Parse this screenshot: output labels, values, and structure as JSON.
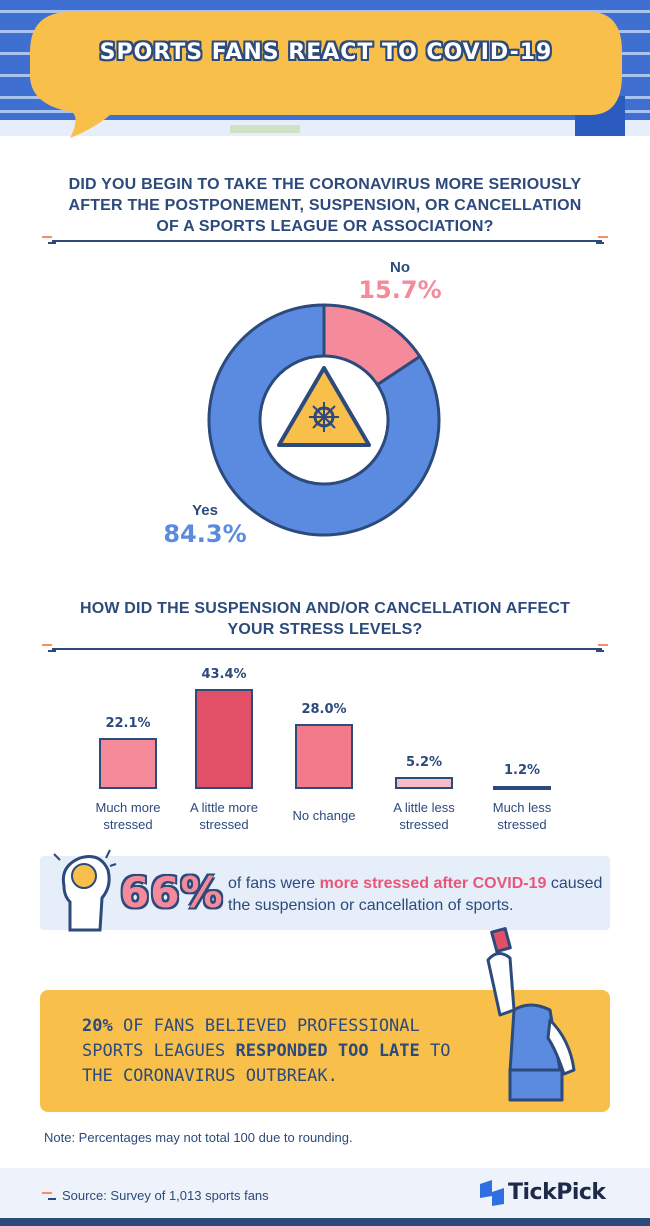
{
  "header": {
    "title": "SPORTS FANS REACT TO COVID-19"
  },
  "chart_data": [
    {
      "type": "donut",
      "title": "DID YOU BEGIN TO TAKE THE CORONAVIRUS MORE SERIOUSLY AFTER THE POSTPONEMENT, SUSPENSION, OR CANCELLATION OF A SPORTS LEAGUE OR ASSOCIATION?",
      "categories": [
        "No",
        "Yes"
      ],
      "values": [
        15.7,
        84.3
      ],
      "value_labels": [
        "15.7%",
        "84.3%"
      ],
      "colors": [
        "#f48a9a",
        "#5b8be0"
      ]
    },
    {
      "type": "bar",
      "title": "HOW DID THE SUSPENSION AND/OR CANCELLATION AFFECT YOUR STRESS LEVELS?",
      "categories": [
        "Much more stressed",
        "A little more stressed",
        "No change",
        "A little less stressed",
        "Much less stressed"
      ],
      "values": [
        22.1,
        43.4,
        28.0,
        5.2,
        1.2
      ],
      "value_labels": [
        "22.1%",
        "43.4%",
        "28.0%",
        "5.2%",
        "1.2%"
      ],
      "colors": [
        "#f48a9a",
        "#e25068",
        "#f27a8a",
        "#f6bcc6",
        "#fbd9df"
      ]
    }
  ],
  "stats": [
    {
      "figure": "66%",
      "text_1": "of fans were ",
      "highlight": "more stressed after COVID-19",
      "text_2": " caused the suspension or cancellation of sports."
    },
    {
      "figure": "20%",
      "text_1": " OF FANS BELIEVED PROFESSIONAL SPORTS LEAGUES ",
      "highlight": "RESPONDED TOO LATE",
      "text_2": " TO THE CORONAVIRUS OUTBREAK."
    }
  ],
  "note": "Note: Percentages may not total 100 due to rounding.",
  "footer": {
    "source": "Source: Survey of 1,013 sports fans",
    "brand": "TickPick"
  }
}
